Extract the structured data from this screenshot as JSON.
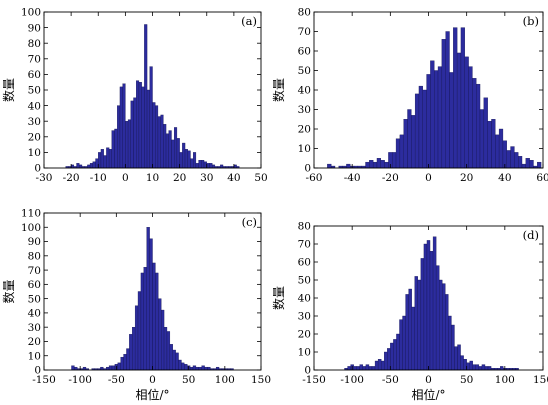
{
  "bar_color": "#2c2c9e",
  "chart_data": [
    {
      "type": "bar",
      "panel_label": "(a)",
      "xlabel": "",
      "ylabel": "数量",
      "xlim": [
        -30,
        50
      ],
      "ylim": [
        0,
        100
      ],
      "x_ticks": [
        -30,
        -20,
        -10,
        0,
        10,
        20,
        30,
        40,
        50
      ],
      "y_ticks": [
        0,
        10,
        20,
        30,
        40,
        50,
        60,
        70,
        80,
        90,
        100
      ],
      "bin_start": -22,
      "bin_width": 1,
      "values": [
        1,
        1,
        2,
        1,
        3,
        2,
        1,
        1,
        2,
        3,
        4,
        6,
        10,
        12,
        8,
        13,
        12,
        24,
        25,
        40,
        52,
        54,
        30,
        31,
        43,
        45,
        56,
        55,
        52,
        92,
        50,
        65,
        42,
        40,
        33,
        34,
        28,
        22,
        24,
        18,
        26,
        19,
        10,
        16,
        12,
        11,
        6,
        10,
        3,
        5,
        5,
        4,
        3,
        3,
        2,
        1,
        1,
        2,
        1,
        1,
        1,
        1,
        2,
        1
      ]
    },
    {
      "type": "bar",
      "panel_label": "(b)",
      "xlabel": "",
      "ylabel": "数量",
      "xlim": [
        -60,
        60
      ],
      "ylim": [
        0,
        80
      ],
      "x_ticks": [
        -60,
        -40,
        -20,
        0,
        20,
        40,
        60
      ],
      "y_ticks": [
        0,
        10,
        20,
        30,
        40,
        50,
        60,
        70,
        80
      ],
      "bin_start": -53,
      "bin_width": 2,
      "values": [
        2,
        1,
        0,
        1,
        1,
        2,
        1,
        1,
        1,
        1,
        3,
        4,
        3,
        5,
        4,
        3,
        8,
        8,
        15,
        17,
        25,
        30,
        27,
        38,
        42,
        40,
        48,
        55,
        50,
        52,
        66,
        70,
        49,
        72,
        59,
        72,
        57,
        52,
        46,
        43,
        30,
        36,
        24,
        25,
        17,
        20,
        14,
        9,
        11,
        8,
        6,
        2,
        5,
        4,
        1,
        3
      ]
    },
    {
      "type": "bar",
      "panel_label": "(c)",
      "xlabel": "相位/°",
      "ylabel": "数量",
      "xlim": [
        -150,
        150
      ],
      "ylim": [
        0,
        110
      ],
      "x_ticks": [
        -150,
        -100,
        -50,
        0,
        50,
        100,
        150
      ],
      "y_ticks": [
        0,
        10,
        20,
        30,
        40,
        50,
        60,
        70,
        80,
        90,
        100,
        110
      ],
      "bin_start": -112,
      "bin_width": 4,
      "values": [
        3,
        2,
        1,
        1,
        2,
        1,
        0,
        1,
        1,
        1,
        2,
        1,
        2,
        3,
        3,
        4,
        5,
        9,
        11,
        15,
        25,
        30,
        45,
        55,
        68,
        72,
        100,
        92,
        75,
        68,
        50,
        42,
        30,
        27,
        18,
        14,
        12,
        7,
        5,
        4,
        3,
        2,
        3,
        2,
        2,
        3,
        2,
        2,
        1,
        1,
        2,
        1,
        1,
        1,
        1,
        1
      ]
    },
    {
      "type": "bar",
      "panel_label": "(d)",
      "xlabel": "相位/°",
      "ylabel": "数量",
      "xlim": [
        -150,
        150
      ],
      "ylim": [
        0,
        80
      ],
      "x_ticks": [
        -150,
        -100,
        -50,
        0,
        50,
        100,
        150
      ],
      "y_ticks": [
        0,
        10,
        20,
        30,
        40,
        50,
        60,
        70,
        80
      ],
      "bin_start": -110,
      "bin_width": 4,
      "values": [
        1,
        2,
        3,
        2,
        2,
        3,
        2,
        3,
        2,
        2,
        5,
        6,
        5,
        10,
        12,
        15,
        17,
        20,
        28,
        30,
        42,
        45,
        35,
        52,
        50,
        62,
        70,
        72,
        66,
        74,
        58,
        50,
        48,
        42,
        30,
        25,
        13,
        14,
        8,
        6,
        4,
        5,
        3,
        3,
        2,
        3,
        2,
        2,
        1,
        1,
        1,
        2,
        1,
        1,
        1,
        1,
        1
      ]
    }
  ]
}
